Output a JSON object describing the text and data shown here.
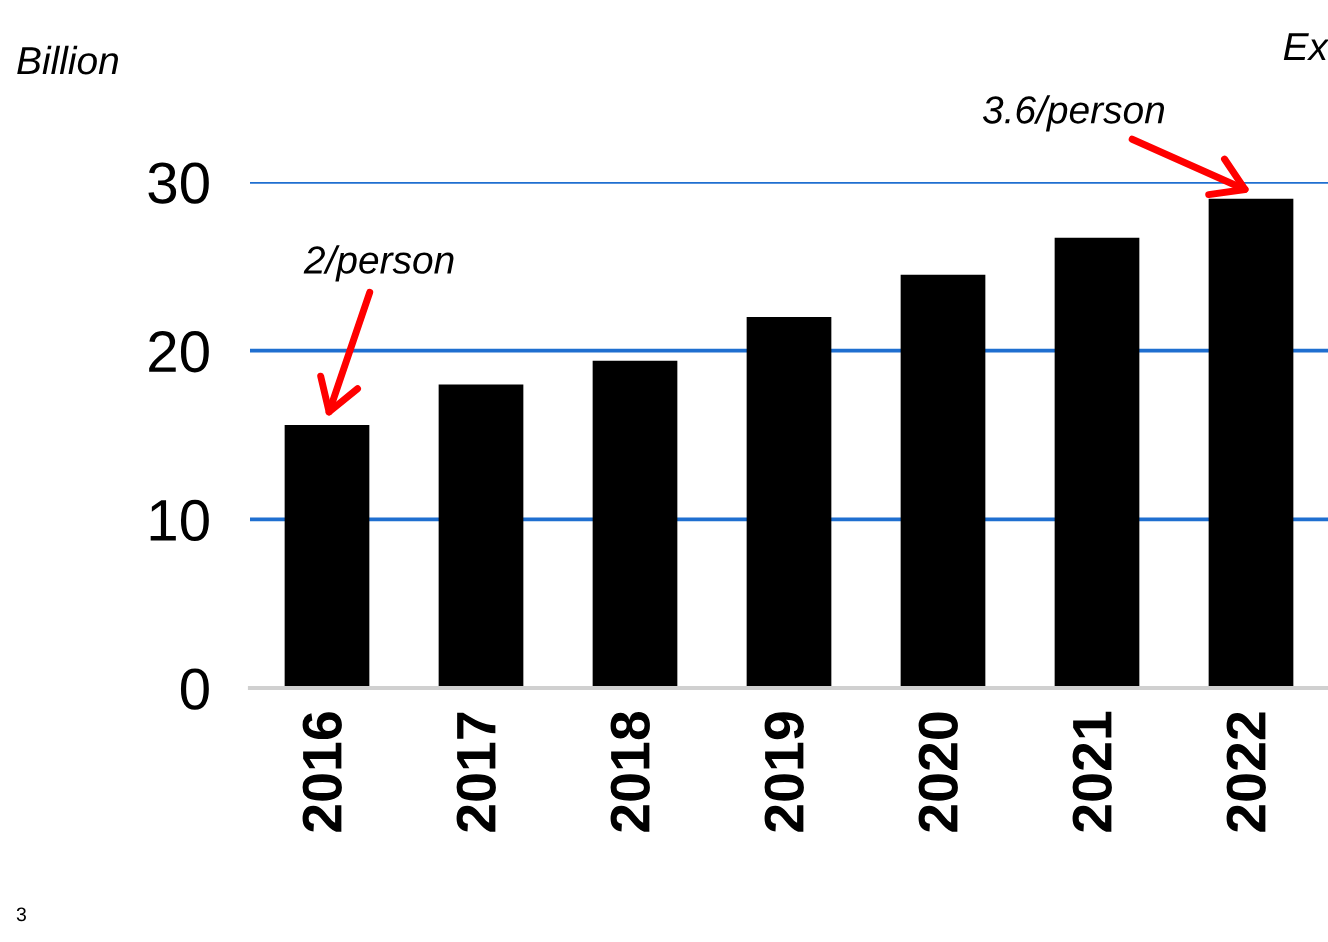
{
  "chart_data": {
    "type": "bar",
    "ylabel": "Billion",
    "categories": [
      "2016",
      "2017",
      "2018",
      "2019",
      "2020",
      "2021",
      "2022"
    ],
    "values": [
      15.6,
      18.0,
      19.4,
      22.0,
      24.5,
      26.7,
      29.0
    ],
    "color": "#000000",
    "ylim": [
      0,
      30
    ],
    "yticks": [
      0,
      10,
      20,
      30
    ],
    "grid": "y",
    "annotations": [
      {
        "text": "2/person",
        "x": "2016",
        "y": 15.6
      },
      {
        "text": "3.6/person",
        "x": "2022",
        "y": 29.0
      },
      "Ex",
      "3"
    ]
  }
}
